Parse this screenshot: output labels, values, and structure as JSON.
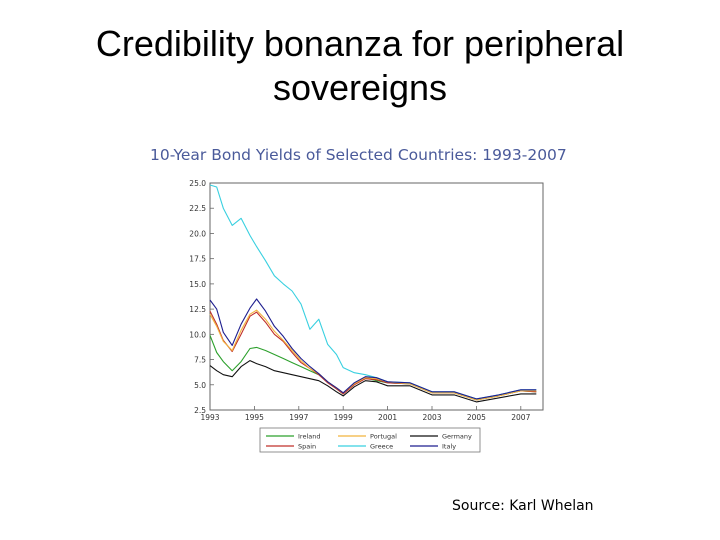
{
  "slide": {
    "title": "Credibility bonanza for peripheral sovereigns",
    "source": "Source:  Karl Whelan"
  },
  "chart_data": {
    "type": "line",
    "title": "10-Year Bond Yields of Selected Countries: 1993-2007",
    "xlabel": "",
    "ylabel": "",
    "xlim": [
      1993.0,
      2008.0
    ],
    "ylim": [
      2.5,
      25.0
    ],
    "yticks": [
      "25.0",
      "22.5",
      "20.0",
      "17.5",
      "15.0",
      "12.5",
      "10.0",
      "7.5",
      "5.0",
      "2.5"
    ],
    "xticks": [
      "1993",
      "1995",
      "1997",
      "1999",
      "2001",
      "2003",
      "2005",
      "2007"
    ],
    "grid": false,
    "legend": "bottom",
    "series": [
      {
        "name": "Ireland",
        "color": "#2ca02c",
        "x": [
          1993.0,
          1993.3,
          1993.6,
          1994.0,
          1994.4,
          1994.8,
          1995.1,
          1995.5,
          1995.9,
          1996.3,
          1996.7,
          1997.1,
          1997.5,
          1997.9,
          1998.3,
          1998.7,
          1999.0,
          1999.5,
          2000.0,
          2000.5,
          2001.0,
          2002.0,
          2003.0,
          2004.0,
          2005.0,
          2006.0,
          2007.0,
          2007.7
        ],
        "values": [
          9.9,
          8.2,
          7.3,
          6.4,
          7.3,
          8.6,
          8.7,
          8.4,
          8.0,
          7.6,
          7.2,
          6.8,
          6.4,
          6.0,
          5.3,
          4.6,
          4.1,
          5.1,
          5.7,
          5.4,
          5.2,
          5.1,
          4.2,
          4.2,
          3.5,
          3.9,
          4.4,
          4.3
        ]
      },
      {
        "name": "Spain",
        "color": "#c0302a",
        "x": [
          1993.0,
          1993.3,
          1993.6,
          1994.0,
          1994.4,
          1994.8,
          1995.1,
          1995.5,
          1995.9,
          1996.3,
          1996.7,
          1997.1,
          1997.5,
          1997.9,
          1998.3,
          1998.7,
          1999.0,
          1999.5,
          2000.0,
          2000.5,
          2001.0,
          2002.0,
          2003.0,
          2004.0,
          2005.0,
          2006.0,
          2007.0,
          2007.7
        ],
        "values": [
          12.3,
          11.0,
          9.4,
          8.3,
          10.0,
          11.8,
          12.2,
          11.2,
          10.0,
          9.3,
          8.2,
          7.2,
          6.6,
          6.0,
          5.2,
          4.6,
          4.1,
          5.0,
          5.6,
          5.5,
          5.2,
          5.1,
          4.2,
          4.2,
          3.5,
          3.9,
          4.4,
          4.3
        ]
      },
      {
        "name": "Portugal",
        "color": "#f2b33d",
        "x": [
          1993.0,
          1993.3,
          1993.6,
          1994.0,
          1994.4,
          1994.8,
          1995.1,
          1995.5,
          1995.9,
          1996.3,
          1996.7,
          1997.1,
          1997.5,
          1997.9,
          1998.3,
          1998.7,
          1999.0,
          1999.5,
          2000.0,
          2000.5,
          2001.0,
          2002.0,
          2003.0,
          2004.0,
          2005.0,
          2006.0,
          2007.0,
          2007.7
        ],
        "values": [
          12.0,
          10.8,
          9.3,
          8.4,
          10.4,
          12.0,
          12.4,
          11.5,
          10.3,
          9.4,
          8.4,
          7.4,
          6.6,
          6.1,
          5.3,
          4.7,
          4.2,
          5.1,
          5.7,
          5.6,
          5.3,
          5.1,
          4.2,
          4.2,
          3.5,
          3.9,
          4.4,
          4.4
        ]
      },
      {
        "name": "Greece",
        "color": "#39d0e0",
        "x": [
          1993.0,
          1993.3,
          1993.6,
          1994.0,
          1994.4,
          1994.8,
          1995.1,
          1995.5,
          1995.9,
          1996.3,
          1996.7,
          1997.1,
          1997.5,
          1997.9,
          1998.3,
          1998.7,
          1999.0,
          1999.5,
          2000.0,
          2000.5,
          2001.0,
          2002.0,
          2003.0,
          2004.0,
          2005.0,
          2006.0,
          2007.0,
          2007.7
        ],
        "values": [
          24.8,
          24.6,
          22.5,
          20.8,
          21.5,
          19.8,
          18.7,
          17.3,
          15.8,
          15.0,
          14.3,
          13.0,
          10.5,
          11.5,
          9.0,
          8.0,
          6.7,
          6.2,
          6.0,
          5.7,
          5.3,
          5.2,
          4.3,
          4.3,
          3.6,
          4.0,
          4.5,
          4.5
        ]
      },
      {
        "name": "Germany",
        "color": "#111111",
        "x": [
          1993.0,
          1993.3,
          1993.6,
          1994.0,
          1994.4,
          1994.8,
          1995.1,
          1995.5,
          1995.9,
          1996.3,
          1996.7,
          1997.1,
          1997.5,
          1997.9,
          1998.3,
          1998.7,
          1999.0,
          1999.5,
          2000.0,
          2000.5,
          2001.0,
          2002.0,
          2003.0,
          2004.0,
          2005.0,
          2006.0,
          2007.0,
          2007.7
        ],
        "values": [
          6.9,
          6.4,
          6.0,
          5.8,
          6.8,
          7.4,
          7.1,
          6.8,
          6.4,
          6.2,
          6.0,
          5.8,
          5.6,
          5.4,
          4.9,
          4.3,
          3.9,
          4.8,
          5.4,
          5.3,
          4.9,
          4.9,
          4.0,
          4.0,
          3.3,
          3.7,
          4.1,
          4.1
        ]
      },
      {
        "name": "Italy",
        "color": "#1f1f8f",
        "x": [
          1993.0,
          1993.3,
          1993.6,
          1994.0,
          1994.4,
          1994.8,
          1995.1,
          1995.5,
          1995.9,
          1996.3,
          1996.7,
          1997.1,
          1997.5,
          1997.9,
          1998.3,
          1998.7,
          1999.0,
          1999.5,
          2000.0,
          2000.5,
          2001.0,
          2002.0,
          2003.0,
          2004.0,
          2005.0,
          2006.0,
          2007.0,
          2007.7
        ],
        "values": [
          13.4,
          12.5,
          10.2,
          8.9,
          11.0,
          12.6,
          13.5,
          12.3,
          10.8,
          9.8,
          8.6,
          7.6,
          6.8,
          6.1,
          5.3,
          4.7,
          4.2,
          5.2,
          5.8,
          5.7,
          5.3,
          5.2,
          4.3,
          4.3,
          3.6,
          4.0,
          4.5,
          4.5
        ]
      }
    ]
  }
}
